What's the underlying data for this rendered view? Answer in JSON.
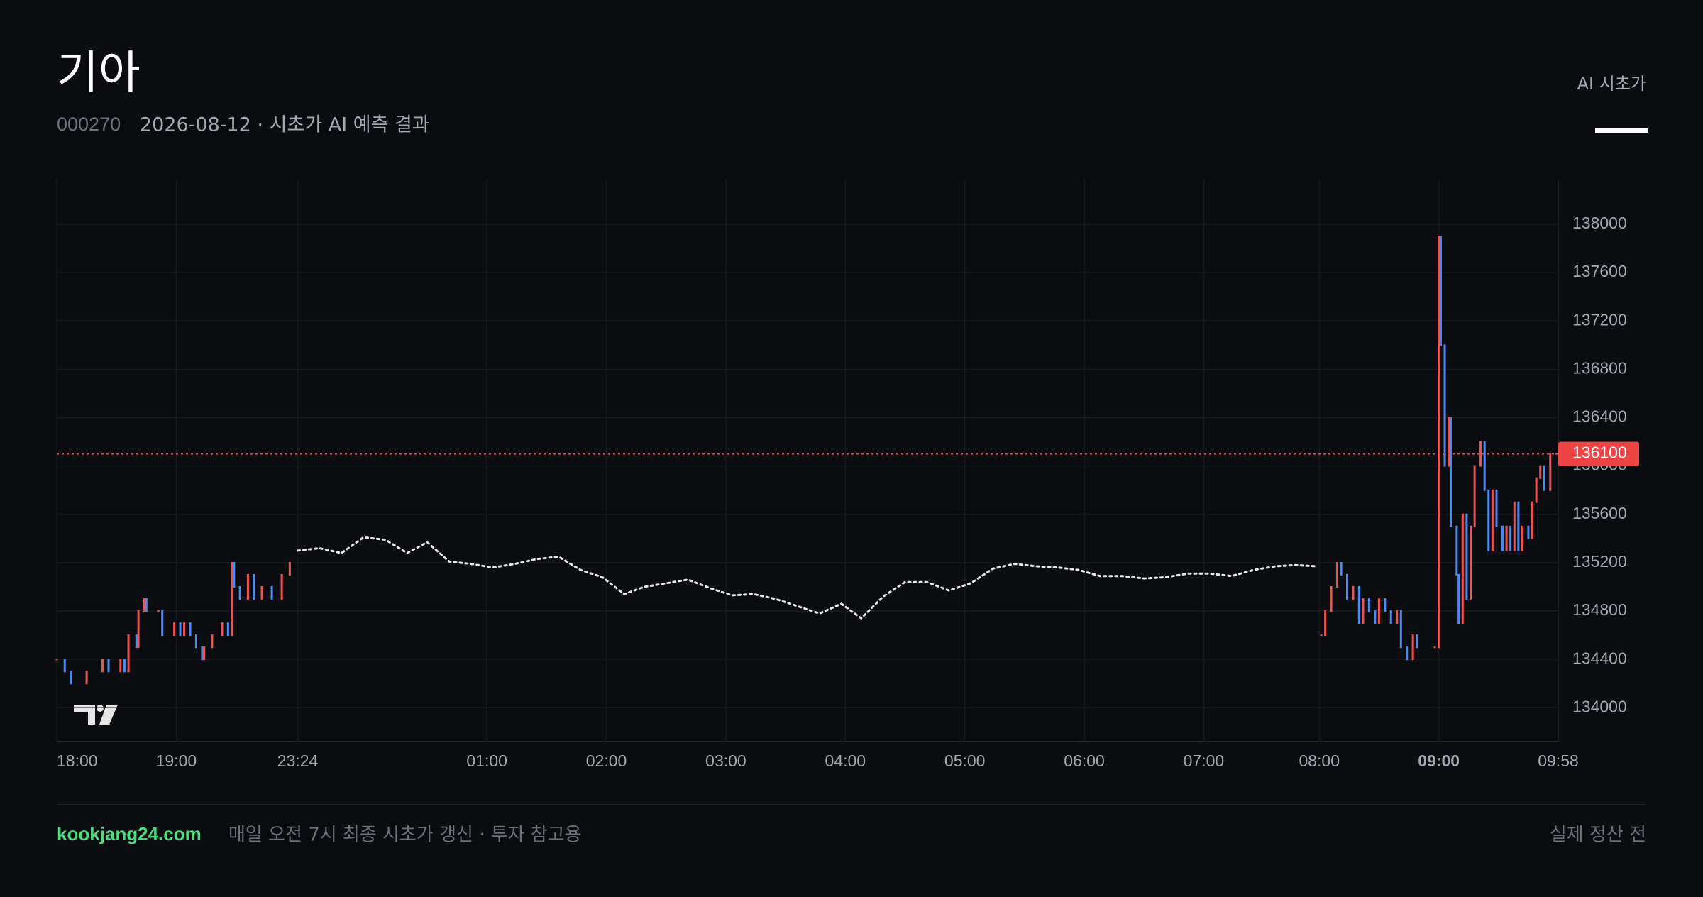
{
  "header": {
    "title": "기아",
    "code": "000270",
    "subtitle": "2026-08-12 · 시초가 AI 예측 결과",
    "tab": "AI 시초가"
  },
  "chart_data": {
    "type": "price",
    "xlim": [
      0,
      754
    ],
    "ylim": [
      133720,
      138370
    ],
    "xticks": [
      {
        "value": 0,
        "label": "18:00"
      },
      {
        "value": 60,
        "label": "19:00"
      },
      {
        "value": 121,
        "label": "23:24"
      },
      {
        "value": 216,
        "label": "01:00"
      },
      {
        "value": 276,
        "label": "02:00"
      },
      {
        "value": 336,
        "label": "03:00"
      },
      {
        "value": 396,
        "label": "04:00"
      },
      {
        "value": 456,
        "label": "05:00"
      },
      {
        "value": 516,
        "label": "06:00"
      },
      {
        "value": 576,
        "label": "07:00"
      },
      {
        "value": 634,
        "label": "08:00"
      },
      {
        "value": 694,
        "label": "09:00",
        "bold": true
      },
      {
        "value": 754,
        "label": "09:58"
      }
    ],
    "yticks": [
      134000,
      134400,
      134800,
      135200,
      135600,
      136000,
      136400,
      136800,
      137200,
      137600,
      138000
    ],
    "grid": true,
    "up_color": "#ef5350",
    "down_color": "#4a8cf5",
    "last_price": 136100,
    "last_color": "#ef4444",
    "series": [
      {
        "style": "bars",
        "x": [
          0,
          4,
          7,
          15,
          23,
          26,
          32,
          34,
          36,
          40,
          41,
          44,
          45,
          51,
          53,
          59,
          62,
          64,
          67,
          70,
          73,
          74,
          78,
          83,
          86,
          88,
          89,
          92,
          96,
          99,
          103,
          108,
          113,
          117
        ],
        "values": [
          134400,
          134300,
          134200,
          134300,
          134400,
          134300,
          134400,
          134300,
          134600,
          134500,
          134800,
          134900,
          134800,
          134800,
          134600,
          134700,
          134600,
          134700,
          134600,
          134500,
          134400,
          134500,
          134600,
          134700,
          134600,
          135200,
          135000,
          134900,
          135100,
          134900,
          135000,
          134900,
          135100,
          135200
        ]
      },
      {
        "style": "dots",
        "color": "#e8e8e8",
        "x": [
          121,
          132,
          143,
          154,
          165,
          176,
          186,
          197,
          208,
          219,
          230,
          241,
          252,
          263,
          274,
          285,
          295,
          306,
          317,
          328,
          339,
          350,
          361,
          372,
          383,
          394,
          404,
          415,
          426,
          437,
          448,
          459,
          470,
          481,
          492,
          503,
          513,
          524,
          535,
          546,
          557,
          568,
          579,
          590,
          601,
          612,
          622,
          633
        ],
        "values": [
          135300,
          135320,
          135280,
          135410,
          135390,
          135280,
          135370,
          135210,
          135190,
          135160,
          135190,
          135230,
          135250,
          135140,
          135080,
          134940,
          135000,
          135030,
          135060,
          134990,
          134930,
          134940,
          134900,
          134840,
          134780,
          134860,
          134740,
          134920,
          135040,
          135040,
          134970,
          135030,
          135150,
          135190,
          135170,
          135160,
          135140,
          135090,
          135090,
          135070,
          135080,
          135110,
          135110,
          135090,
          135140,
          135170,
          135180,
          135170
        ]
      },
      {
        "style": "bars",
        "x": [
          635,
          637,
          640,
          643,
          645,
          648,
          651,
          654,
          656,
          659,
          662,
          664,
          667,
          670,
          673,
          675,
          678,
          681,
          683,
          692,
          694,
          695,
          697,
          699,
          700,
          703,
          704,
          706,
          708,
          710,
          712,
          715,
          717,
          719,
          721,
          723,
          726,
          728,
          730,
          732,
          734,
          736,
          739,
          741,
          743,
          745,
          747,
          750,
          753
        ],
        "values": [
          134600,
          134800,
          135000,
          135200,
          135100,
          134900,
          135000,
          134700,
          134900,
          134800,
          134700,
          134900,
          134800,
          134700,
          134800,
          134500,
          134400,
          134600,
          134500,
          134500,
          137900,
          137000,
          136000,
          136400,
          135500,
          135100,
          134700,
          135600,
          134900,
          135500,
          136000,
          136200,
          135800,
          135300,
          135800,
          135500,
          135300,
          135500,
          135300,
          135700,
          135300,
          135500,
          135400,
          135700,
          135900,
          136000,
          135800,
          136100,
          136100
        ]
      }
    ]
  },
  "footer": {
    "site": "kookjang24.com",
    "note": "매일 오전 7시 최종 시초가 갱신 · 투자 참고용",
    "status": "실제 정산 전"
  }
}
